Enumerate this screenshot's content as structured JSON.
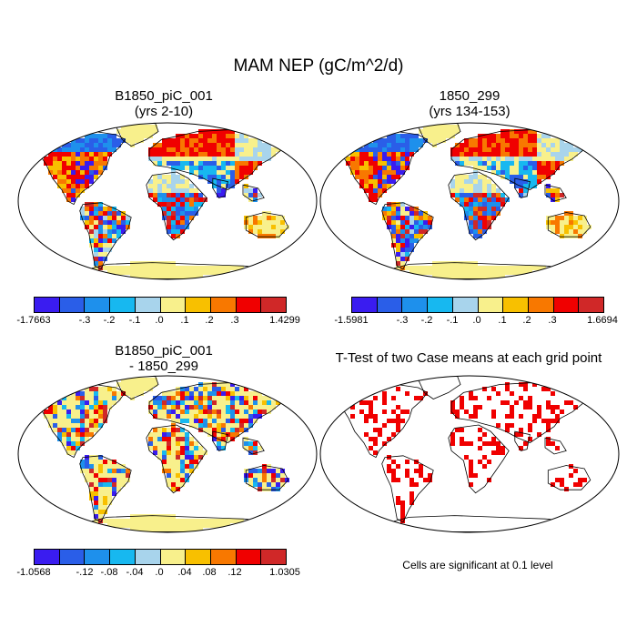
{
  "title": "MAM NEP (gC/m^2/d)",
  "panels": {
    "top_left": {
      "line1": "B1850_piC_001",
      "line2": "(yrs 2-10)"
    },
    "top_right": {
      "line1": "1850_299",
      "line2": "(yrs 134-153)"
    },
    "bottom_left": {
      "line1": "B1850_piC_001",
      "line2": "- 1850_299"
    },
    "bottom_right": {
      "line1": "T-Test of two Case means at each grid point"
    }
  },
  "colorbars": {
    "top_left": {
      "min": "-1.7663",
      "max": "1.4299",
      "ticks": [
        "-.3",
        "-.2",
        "-.1",
        ".0",
        ".1",
        ".2",
        ".3"
      ]
    },
    "top_right": {
      "min": "-1.5981",
      "max": "1.6694",
      "ticks": [
        "-.3",
        "-.2",
        "-.1",
        ".0",
        ".1",
        ".2",
        ".3"
      ]
    },
    "bottom_left": {
      "min": "-1.0568",
      "max": "1.0305",
      "ticks": [
        "-.12",
        "-.08",
        "-.04",
        ".0",
        ".04",
        ".08",
        ".12"
      ]
    }
  },
  "palette": [
    "#3a1cf0",
    "#2a5ee8",
    "#1e90ec",
    "#17b8f0",
    "#a8d4ec",
    "#f8f08c",
    "#f8c000",
    "#f87800",
    "#f00000",
    "#d02828"
  ],
  "significance_note": "Cells are significant at 0.1 level"
}
